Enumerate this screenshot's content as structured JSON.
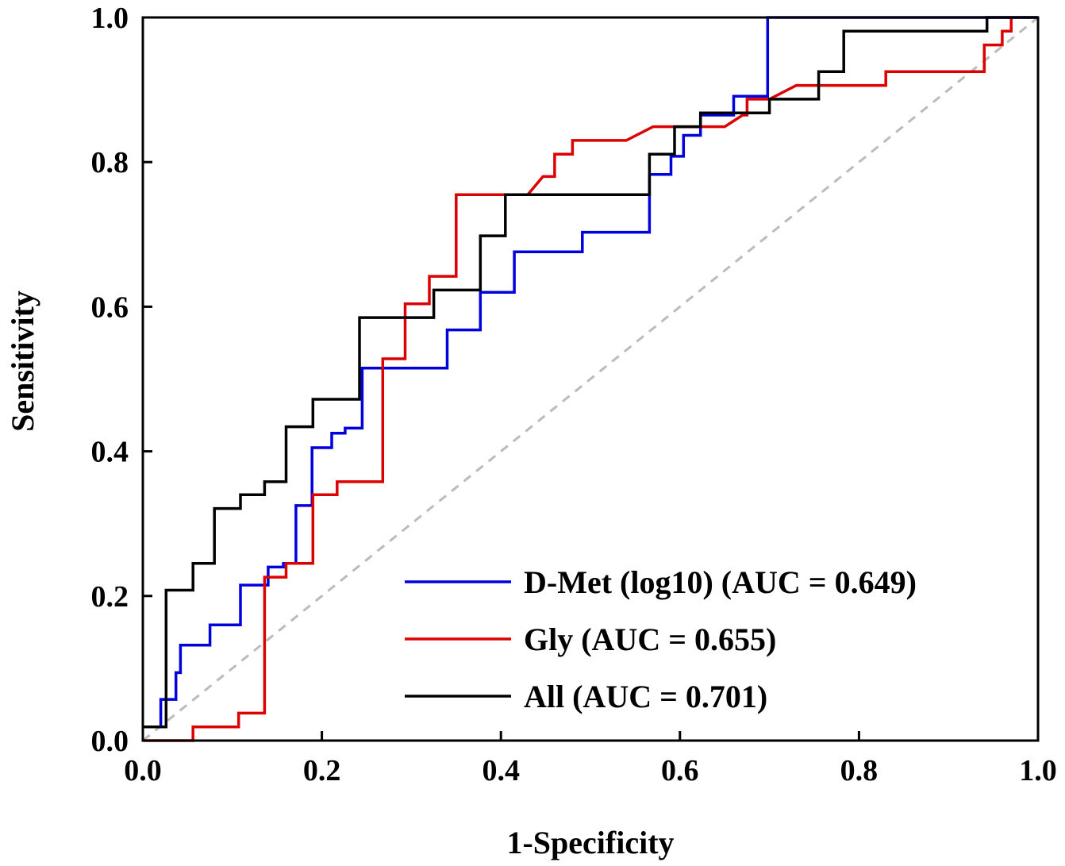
{
  "chart_data": {
    "type": "line",
    "title": "",
    "xlabel": "1-Specificity",
    "ylabel": "Sensitivity",
    "xlim": [
      0,
      1
    ],
    "ylim": [
      0,
      1
    ],
    "xticks": [
      "0.0",
      "0.2",
      "0.4",
      "0.6",
      "0.8",
      "1.0"
    ],
    "yticks": [
      "0.0",
      "0.2",
      "0.4",
      "0.6",
      "0.8",
      "1.0"
    ],
    "grid": false,
    "legend_position": "bottom-right",
    "reference_line": {
      "name": "chance",
      "color": "#bbbbbb",
      "x": [
        0,
        1
      ],
      "y": [
        0,
        1
      ]
    },
    "series": [
      {
        "name": "D-Met (log10) (AUC = 0.649)",
        "color": "#0000dd",
        "x": [
          0.0,
          0.02,
          0.02,
          0.037,
          0.037,
          0.042,
          0.042,
          0.075,
          0.075,
          0.109,
          0.109,
          0.14,
          0.14,
          0.157,
          0.157,
          0.171,
          0.171,
          0.189,
          0.189,
          0.211,
          0.211,
          0.226,
          0.226,
          0.245,
          0.245,
          0.34,
          0.34,
          0.377,
          0.377,
          0.415,
          0.415,
          0.491,
          0.491,
          0.566,
          0.566,
          0.59,
          0.59,
          0.604,
          0.604,
          0.623,
          0.623,
          0.66,
          0.66,
          0.698,
          0.698,
          0.83,
          0.83,
          1.0
        ],
        "y": [
          0.019,
          0.019,
          0.057,
          0.057,
          0.094,
          0.094,
          0.132,
          0.132,
          0.16,
          0.16,
          0.215,
          0.215,
          0.24,
          0.24,
          0.245,
          0.245,
          0.325,
          0.325,
          0.405,
          0.405,
          0.425,
          0.425,
          0.432,
          0.432,
          0.515,
          0.515,
          0.568,
          0.568,
          0.62,
          0.62,
          0.676,
          0.676,
          0.703,
          0.703,
          0.783,
          0.783,
          0.808,
          0.808,
          0.837,
          0.837,
          0.865,
          0.865,
          0.891,
          0.891,
          1.0,
          1.0,
          1.0,
          1.0
        ]
      },
      {
        "name": "Gly (AUC = 0.655)",
        "color": "#dd0000",
        "x": [
          0.0,
          0.056,
          0.056,
          0.107,
          0.107,
          0.136,
          0.136,
          0.16,
          0.16,
          0.19,
          0.19,
          0.217,
          0.217,
          0.268,
          0.268,
          0.293,
          0.293,
          0.32,
          0.32,
          0.35,
          0.35,
          0.43,
          0.447,
          0.46,
          0.46,
          0.48,
          0.48,
          0.54,
          0.57,
          0.65,
          0.67,
          0.675,
          0.675,
          0.7,
          0.73,
          0.83,
          0.83,
          0.94,
          0.94,
          0.96,
          0.96,
          0.97,
          0.97
        ],
        "y": [
          0.0,
          0.0,
          0.019,
          0.019,
          0.038,
          0.038,
          0.226,
          0.226,
          0.245,
          0.245,
          0.34,
          0.34,
          0.358,
          0.358,
          0.528,
          0.528,
          0.604,
          0.604,
          0.642,
          0.642,
          0.755,
          0.755,
          0.78,
          0.78,
          0.811,
          0.811,
          0.83,
          0.83,
          0.849,
          0.849,
          0.865,
          0.865,
          0.887,
          0.887,
          0.906,
          0.906,
          0.925,
          0.925,
          0.962,
          0.962,
          0.981,
          0.981,
          1.0
        ]
      },
      {
        "name": "All (AUC = 0.701)",
        "color": "#000000",
        "x": [
          0.0,
          0.026,
          0.026,
          0.056,
          0.056,
          0.08,
          0.08,
          0.109,
          0.109,
          0.136,
          0.136,
          0.16,
          0.16,
          0.19,
          0.19,
          0.242,
          0.242,
          0.325,
          0.325,
          0.377,
          0.377,
          0.405,
          0.405,
          0.566,
          0.566,
          0.594,
          0.594,
          0.623,
          0.623,
          0.7,
          0.7,
          0.755,
          0.755,
          0.783,
          0.783,
          0.943,
          0.943,
          1.0
        ],
        "y": [
          0.019,
          0.019,
          0.208,
          0.208,
          0.245,
          0.245,
          0.321,
          0.321,
          0.34,
          0.34,
          0.358,
          0.358,
          0.434,
          0.434,
          0.472,
          0.472,
          0.585,
          0.585,
          0.623,
          0.623,
          0.698,
          0.698,
          0.755,
          0.755,
          0.811,
          0.811,
          0.849,
          0.849,
          0.868,
          0.868,
          0.887,
          0.887,
          0.925,
          0.925,
          0.981,
          0.981,
          1.0,
          1.0
        ]
      }
    ]
  }
}
